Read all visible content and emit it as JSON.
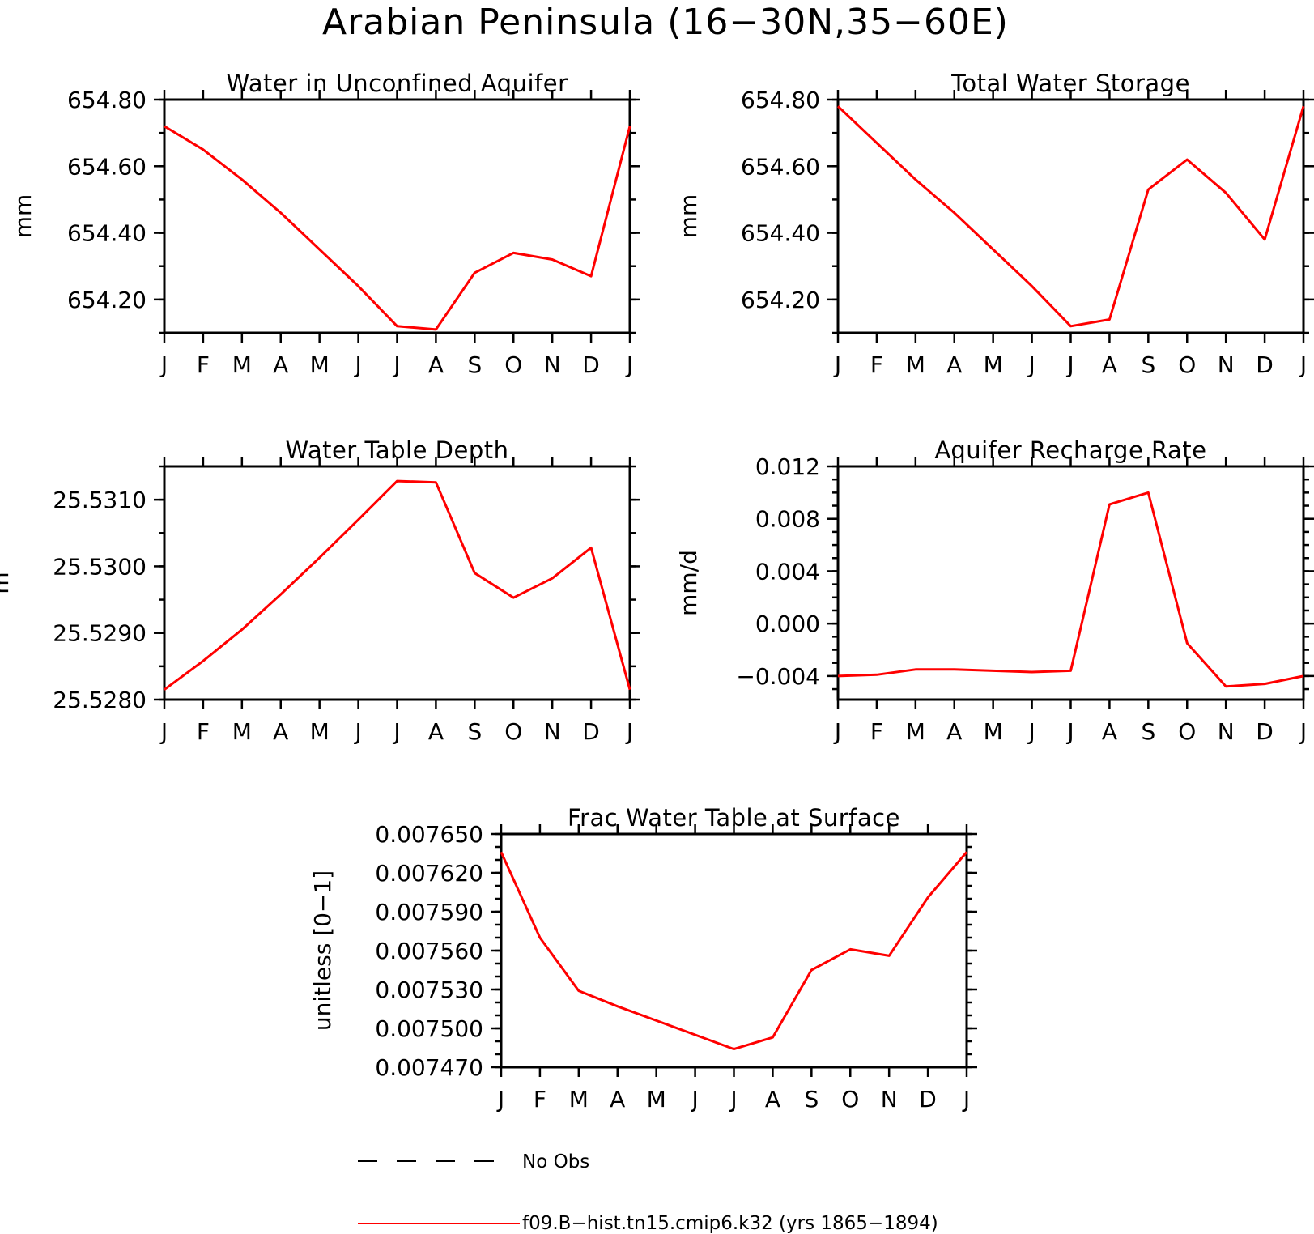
{
  "title": "Arabian Peninsula (16−30N,35−60E)",
  "colors": {
    "model": "#ff0000",
    "obs": "#000000"
  },
  "legend": [
    {
      "label": "No Obs",
      "style": "dashed",
      "color": "#000000"
    },
    {
      "label": "f09.B−hist.tn15.cmip6.k32 (yrs 1865−1894)",
      "style": "solid",
      "color": "#ff0000"
    }
  ],
  "chart_data": [
    {
      "type": "line",
      "title": "Water in Unconfined Aquifer",
      "xlabel": "",
      "ylabel": "mm",
      "categories": [
        "J",
        "F",
        "M",
        "A",
        "M",
        "J",
        "J",
        "A",
        "S",
        "O",
        "N",
        "D",
        "J"
      ],
      "ylim": [
        654.1,
        654.8
      ],
      "yticks": [
        "654.80",
        "654.60",
        "654.40",
        "654.20"
      ],
      "series": [
        {
          "values": [
            654.72,
            654.65,
            654.56,
            654.46,
            654.35,
            654.24,
            654.12,
            654.11,
            654.28,
            654.34,
            654.32,
            654.27,
            654.72
          ]
        }
      ]
    },
    {
      "type": "line",
      "title": "Total Water Storage",
      "xlabel": "",
      "ylabel": "mm",
      "categories": [
        "J",
        "F",
        "M",
        "A",
        "M",
        "J",
        "J",
        "A",
        "S",
        "O",
        "N",
        "D",
        "J"
      ],
      "ylim": [
        654.1,
        654.8
      ],
      "yticks": [
        "654.80",
        "654.60",
        "654.40",
        "654.20"
      ],
      "series": [
        {
          "values": [
            654.78,
            654.67,
            654.56,
            654.46,
            654.35,
            654.24,
            654.12,
            654.14,
            654.53,
            654.62,
            654.52,
            654.38,
            654.78
          ]
        }
      ]
    },
    {
      "type": "line",
      "title": "Water Table Depth",
      "xlabel": "",
      "ylabel": "m",
      "categories": [
        "J",
        "F",
        "M",
        "A",
        "M",
        "J",
        "J",
        "A",
        "S",
        "O",
        "N",
        "D",
        "J"
      ],
      "ylim": [
        25.528,
        25.3155
      ],
      "ylim_actual": [
        25.528,
        25.5315
      ],
      "yticks": [
        "25.5310",
        "25.5300",
        "25.5290",
        "25.5280"
      ],
      "series": [
        {
          "values": [
            25.52815,
            25.52858,
            25.52905,
            25.52958,
            25.53013,
            25.5307,
            25.53128,
            25.53126,
            25.5299,
            25.52953,
            25.52982,
            25.53028,
            25.52815
          ]
        }
      ]
    },
    {
      "type": "line",
      "title": "Aquifer Recharge Rate",
      "xlabel": "",
      "ylabel": "mm/d",
      "categories": [
        "J",
        "F",
        "M",
        "A",
        "M",
        "J",
        "J",
        "A",
        "S",
        "O",
        "N",
        "D",
        "J"
      ],
      "ylim": [
        -0.006,
        0.012
      ],
      "yticks": [
        "0.012",
        "0.008",
        "0.004",
        "0.000",
        "−0.004"
      ],
      "series": [
        {
          "values": [
            -0.004,
            -0.0039,
            -0.0035,
            -0.0035,
            -0.0036,
            -0.0037,
            -0.0036,
            0.0091,
            0.01,
            -0.0015,
            -0.0048,
            -0.0046,
            -0.004
          ]
        }
      ]
    },
    {
      "type": "line",
      "title": "Frac Water Table at Surface",
      "xlabel": "",
      "ylabel": "unitless [0−1]",
      "categories": [
        "J",
        "F",
        "M",
        "A",
        "M",
        "J",
        "J",
        "A",
        "S",
        "O",
        "N",
        "D",
        "J"
      ],
      "ylim": [
        0.00747,
        0.00765
      ],
      "yticks": [
        "0.007650",
        "0.007620",
        "0.007590",
        "0.007560",
        "0.007530",
        "0.007500",
        "0.007470"
      ],
      "series": [
        {
          "values": [
            0.007636,
            0.00757,
            0.007529,
            0.007517,
            0.007506,
            0.007495,
            0.007484,
            0.007493,
            0.007545,
            0.007561,
            0.007556,
            0.007601,
            0.007636
          ]
        }
      ]
    }
  ]
}
